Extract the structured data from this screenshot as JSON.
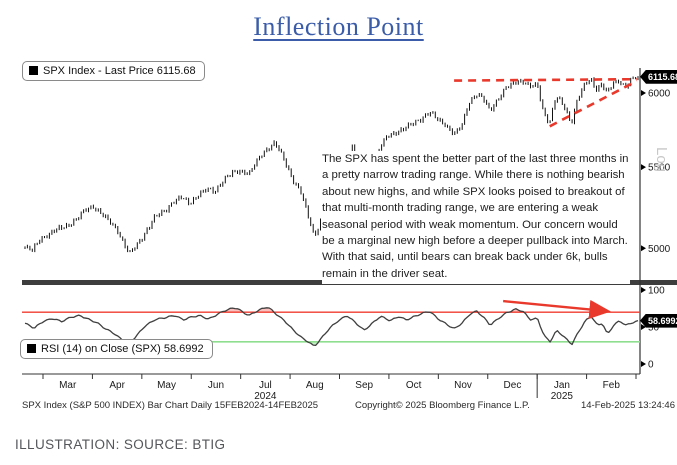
{
  "title": "Inflection Point",
  "source_caption": "ILLUSTRATION: SOURCE: BTIG",
  "legend_price": "SPX Index - Last Price 6115.68",
  "legend_rsi": "RSI (14)  on Close (SPX) 58.6992",
  "price_tag": "6115.68",
  "rsi_tag": "58.6992",
  "log_watermark": "Log",
  "annotation_text": "The SPX has spent the better part of the last three months in a pretty narrow trading range. While there is nothing bearish about new highs, and while SPX looks poised to breakout of that multi-month trading range, we are entering a weak seasonal period with weak momentum. Our concern would be a marginal new high before a deeper pullback into March. With that said, until bears can break back under 6k, bulls remain in the driver seat.",
  "footer": {
    "left": "SPX Index (S&P 500 INDEX) Bar Chart  Daily 15FEB2024-14FEB2025",
    "center": "Copyright© 2025 Bloomberg Finance L.P.",
    "right": "14-Feb-2025 13:24:46"
  },
  "colors": {
    "title_blue": "#3a5ca9",
    "bars": "#111111",
    "trendline_red": "#e9392c",
    "rsi_line": "#3f3f3f",
    "overbought_red": "#f03b30",
    "oversold_green": "#8fdd8f",
    "overbought_fill": "rgba(244,140,134,0.55)",
    "oversold_fill": "rgba(150,226,150,0.55)",
    "divider": "#3d3d3d",
    "axis": "#333333",
    "watermark": "#c8c8c8"
  },
  "chart_data": [
    {
      "type": "bar",
      "name": "SPX Index daily bar chart",
      "yscale": "log",
      "ylim": [
        4900,
        6200
      ],
      "yticks": [
        5000,
        5500,
        6000
      ],
      "last_price": 6115.68,
      "x_axis": {
        "months": [
          "Mar",
          "Apr",
          "May",
          "Jun",
          "Jul",
          "Aug",
          "Sep",
          "Oct",
          "Nov",
          "Dec",
          "Jan",
          "Feb"
        ],
        "year_labels": [
          {
            "text": "2024",
            "month_index": 4
          },
          {
            "text": "2025",
            "month_index": 10
          }
        ],
        "range": "15FEB2024-14FEB2025"
      },
      "points": [
        [
          0.0,
          5005
        ],
        [
          0.012,
          4985
        ],
        [
          0.025,
          5060
        ],
        [
          0.04,
          5085
        ],
        [
          0.055,
          5115
        ],
        [
          0.07,
          5140
        ],
        [
          0.085,
          5175
        ],
        [
          0.1,
          5235
        ],
        [
          0.112,
          5255
        ],
        [
          0.125,
          5205
        ],
        [
          0.138,
          5155
        ],
        [
          0.15,
          5115
        ],
        [
          0.16,
          5040
        ],
        [
          0.17,
          4965
        ],
        [
          0.182,
          5015
        ],
        [
          0.196,
          5095
        ],
        [
          0.212,
          5185
        ],
        [
          0.228,
          5225
        ],
        [
          0.242,
          5285
        ],
        [
          0.256,
          5305
        ],
        [
          0.268,
          5270
        ],
        [
          0.282,
          5325
        ],
        [
          0.296,
          5355
        ],
        [
          0.31,
          5345
        ],
        [
          0.322,
          5415
        ],
        [
          0.336,
          5455
        ],
        [
          0.352,
          5475
        ],
        [
          0.366,
          5465
        ],
        [
          0.382,
          5555
        ],
        [
          0.396,
          5625
        ],
        [
          0.408,
          5665
        ],
        [
          0.42,
          5565
        ],
        [
          0.435,
          5435
        ],
        [
          0.45,
          5345
        ],
        [
          0.462,
          5185
        ],
        [
          0.472,
          5065
        ],
        [
          0.484,
          5185
        ],
        [
          0.496,
          5345
        ],
        [
          0.508,
          5455
        ],
        [
          0.522,
          5575
        ],
        [
          0.534,
          5630
        ],
        [
          0.546,
          5515
        ],
        [
          0.554,
          5415
        ],
        [
          0.568,
          5505
        ],
        [
          0.58,
          5635
        ],
        [
          0.592,
          5705
        ],
        [
          0.606,
          5735
        ],
        [
          0.62,
          5755
        ],
        [
          0.632,
          5785
        ],
        [
          0.646,
          5825
        ],
        [
          0.66,
          5865
        ],
        [
          0.673,
          5815
        ],
        [
          0.686,
          5785
        ],
        [
          0.7,
          5715
        ],
        [
          0.712,
          5765
        ],
        [
          0.724,
          5935
        ],
        [
          0.736,
          5995
        ],
        [
          0.748,
          5955
        ],
        [
          0.758,
          5875
        ],
        [
          0.772,
          5965
        ],
        [
          0.785,
          6035
        ],
        [
          0.794,
          6055
        ],
        [
          0.803,
          6085
        ],
        [
          0.812,
          6088
        ],
        [
          0.824,
          6045
        ],
        [
          0.836,
          6052
        ],
        [
          0.846,
          5860
        ],
        [
          0.856,
          5800
        ],
        [
          0.866,
          5975
        ],
        [
          0.874,
          5935
        ],
        [
          0.882,
          5885
        ],
        [
          0.891,
          5790
        ],
        [
          0.901,
          5955
        ],
        [
          0.913,
          6055
        ],
        [
          0.923,
          6098
        ],
        [
          0.933,
          6025
        ],
        [
          0.941,
          6072
        ],
        [
          0.949,
          5995
        ],
        [
          0.959,
          6062
        ],
        [
          0.969,
          6092
        ],
        [
          0.979,
          6045
        ],
        [
          0.989,
          6092
        ],
        [
          1.0,
          6115.68
        ]
      ],
      "trendlines": [
        {
          "name": "resistance",
          "x1": 0.7,
          "p1": 6088,
          "x2": 0.998,
          "p2": 6098
        },
        {
          "name": "rising-support",
          "x1": 0.856,
          "p1": 5770,
          "x2": 0.998,
          "p2": 6085
        }
      ]
    },
    {
      "type": "line",
      "name": "RSI (14) on Close (SPX)",
      "ylim": [
        0,
        100
      ],
      "yticks": [
        0,
        50,
        100
      ],
      "overbought": 70,
      "oversold": 30,
      "last_value": 58.6992,
      "points": [
        [
          0.0,
          55
        ],
        [
          0.015,
          48
        ],
        [
          0.03,
          58
        ],
        [
          0.045,
          62
        ],
        [
          0.06,
          57
        ],
        [
          0.075,
          63
        ],
        [
          0.09,
          66
        ],
        [
          0.105,
          60
        ],
        [
          0.118,
          55
        ],
        [
          0.13,
          48
        ],
        [
          0.145,
          42
        ],
        [
          0.158,
          33
        ],
        [
          0.17,
          27
        ],
        [
          0.182,
          38
        ],
        [
          0.196,
          52
        ],
        [
          0.212,
          60
        ],
        [
          0.228,
          62
        ],
        [
          0.245,
          66
        ],
        [
          0.258,
          60
        ],
        [
          0.27,
          63
        ],
        [
          0.285,
          65
        ],
        [
          0.3,
          61
        ],
        [
          0.315,
          68
        ],
        [
          0.33,
          73
        ],
        [
          0.345,
          76
        ],
        [
          0.356,
          70
        ],
        [
          0.366,
          66
        ],
        [
          0.38,
          72
        ],
        [
          0.396,
          77
        ],
        [
          0.41,
          68
        ],
        [
          0.424,
          58
        ],
        [
          0.438,
          45
        ],
        [
          0.452,
          35
        ],
        [
          0.463,
          30
        ],
        [
          0.472,
          24
        ],
        [
          0.484,
          35
        ],
        [
          0.497,
          48
        ],
        [
          0.51,
          58
        ],
        [
          0.525,
          66
        ],
        [
          0.54,
          55
        ],
        [
          0.553,
          45
        ],
        [
          0.566,
          55
        ],
        [
          0.58,
          65
        ],
        [
          0.596,
          58
        ],
        [
          0.61,
          64
        ],
        [
          0.622,
          60
        ],
        [
          0.634,
          64
        ],
        [
          0.648,
          68
        ],
        [
          0.66,
          71
        ],
        [
          0.673,
          62
        ],
        [
          0.686,
          55
        ],
        [
          0.7,
          47
        ],
        [
          0.713,
          55
        ],
        [
          0.726,
          68
        ],
        [
          0.737,
          72
        ],
        [
          0.749,
          62
        ],
        [
          0.759,
          52
        ],
        [
          0.773,
          62
        ],
        [
          0.786,
          70
        ],
        [
          0.8,
          74
        ],
        [
          0.812,
          71
        ],
        [
          0.824,
          60
        ],
        [
          0.836,
          62
        ],
        [
          0.847,
          38
        ],
        [
          0.857,
          30
        ],
        [
          0.867,
          45
        ],
        [
          0.875,
          40
        ],
        [
          0.883,
          34
        ],
        [
          0.892,
          27
        ],
        [
          0.902,
          42
        ],
        [
          0.914,
          58
        ],
        [
          0.924,
          64
        ],
        [
          0.934,
          52
        ],
        [
          0.942,
          56
        ],
        [
          0.95,
          40
        ],
        [
          0.96,
          52
        ],
        [
          0.97,
          58
        ],
        [
          0.98,
          52
        ],
        [
          0.99,
          56
        ],
        [
          1.0,
          58.6992
        ]
      ],
      "arrow": {
        "x1": 0.78,
        "v1": 85,
        "x2": 0.948,
        "v2": 71.5
      }
    }
  ]
}
